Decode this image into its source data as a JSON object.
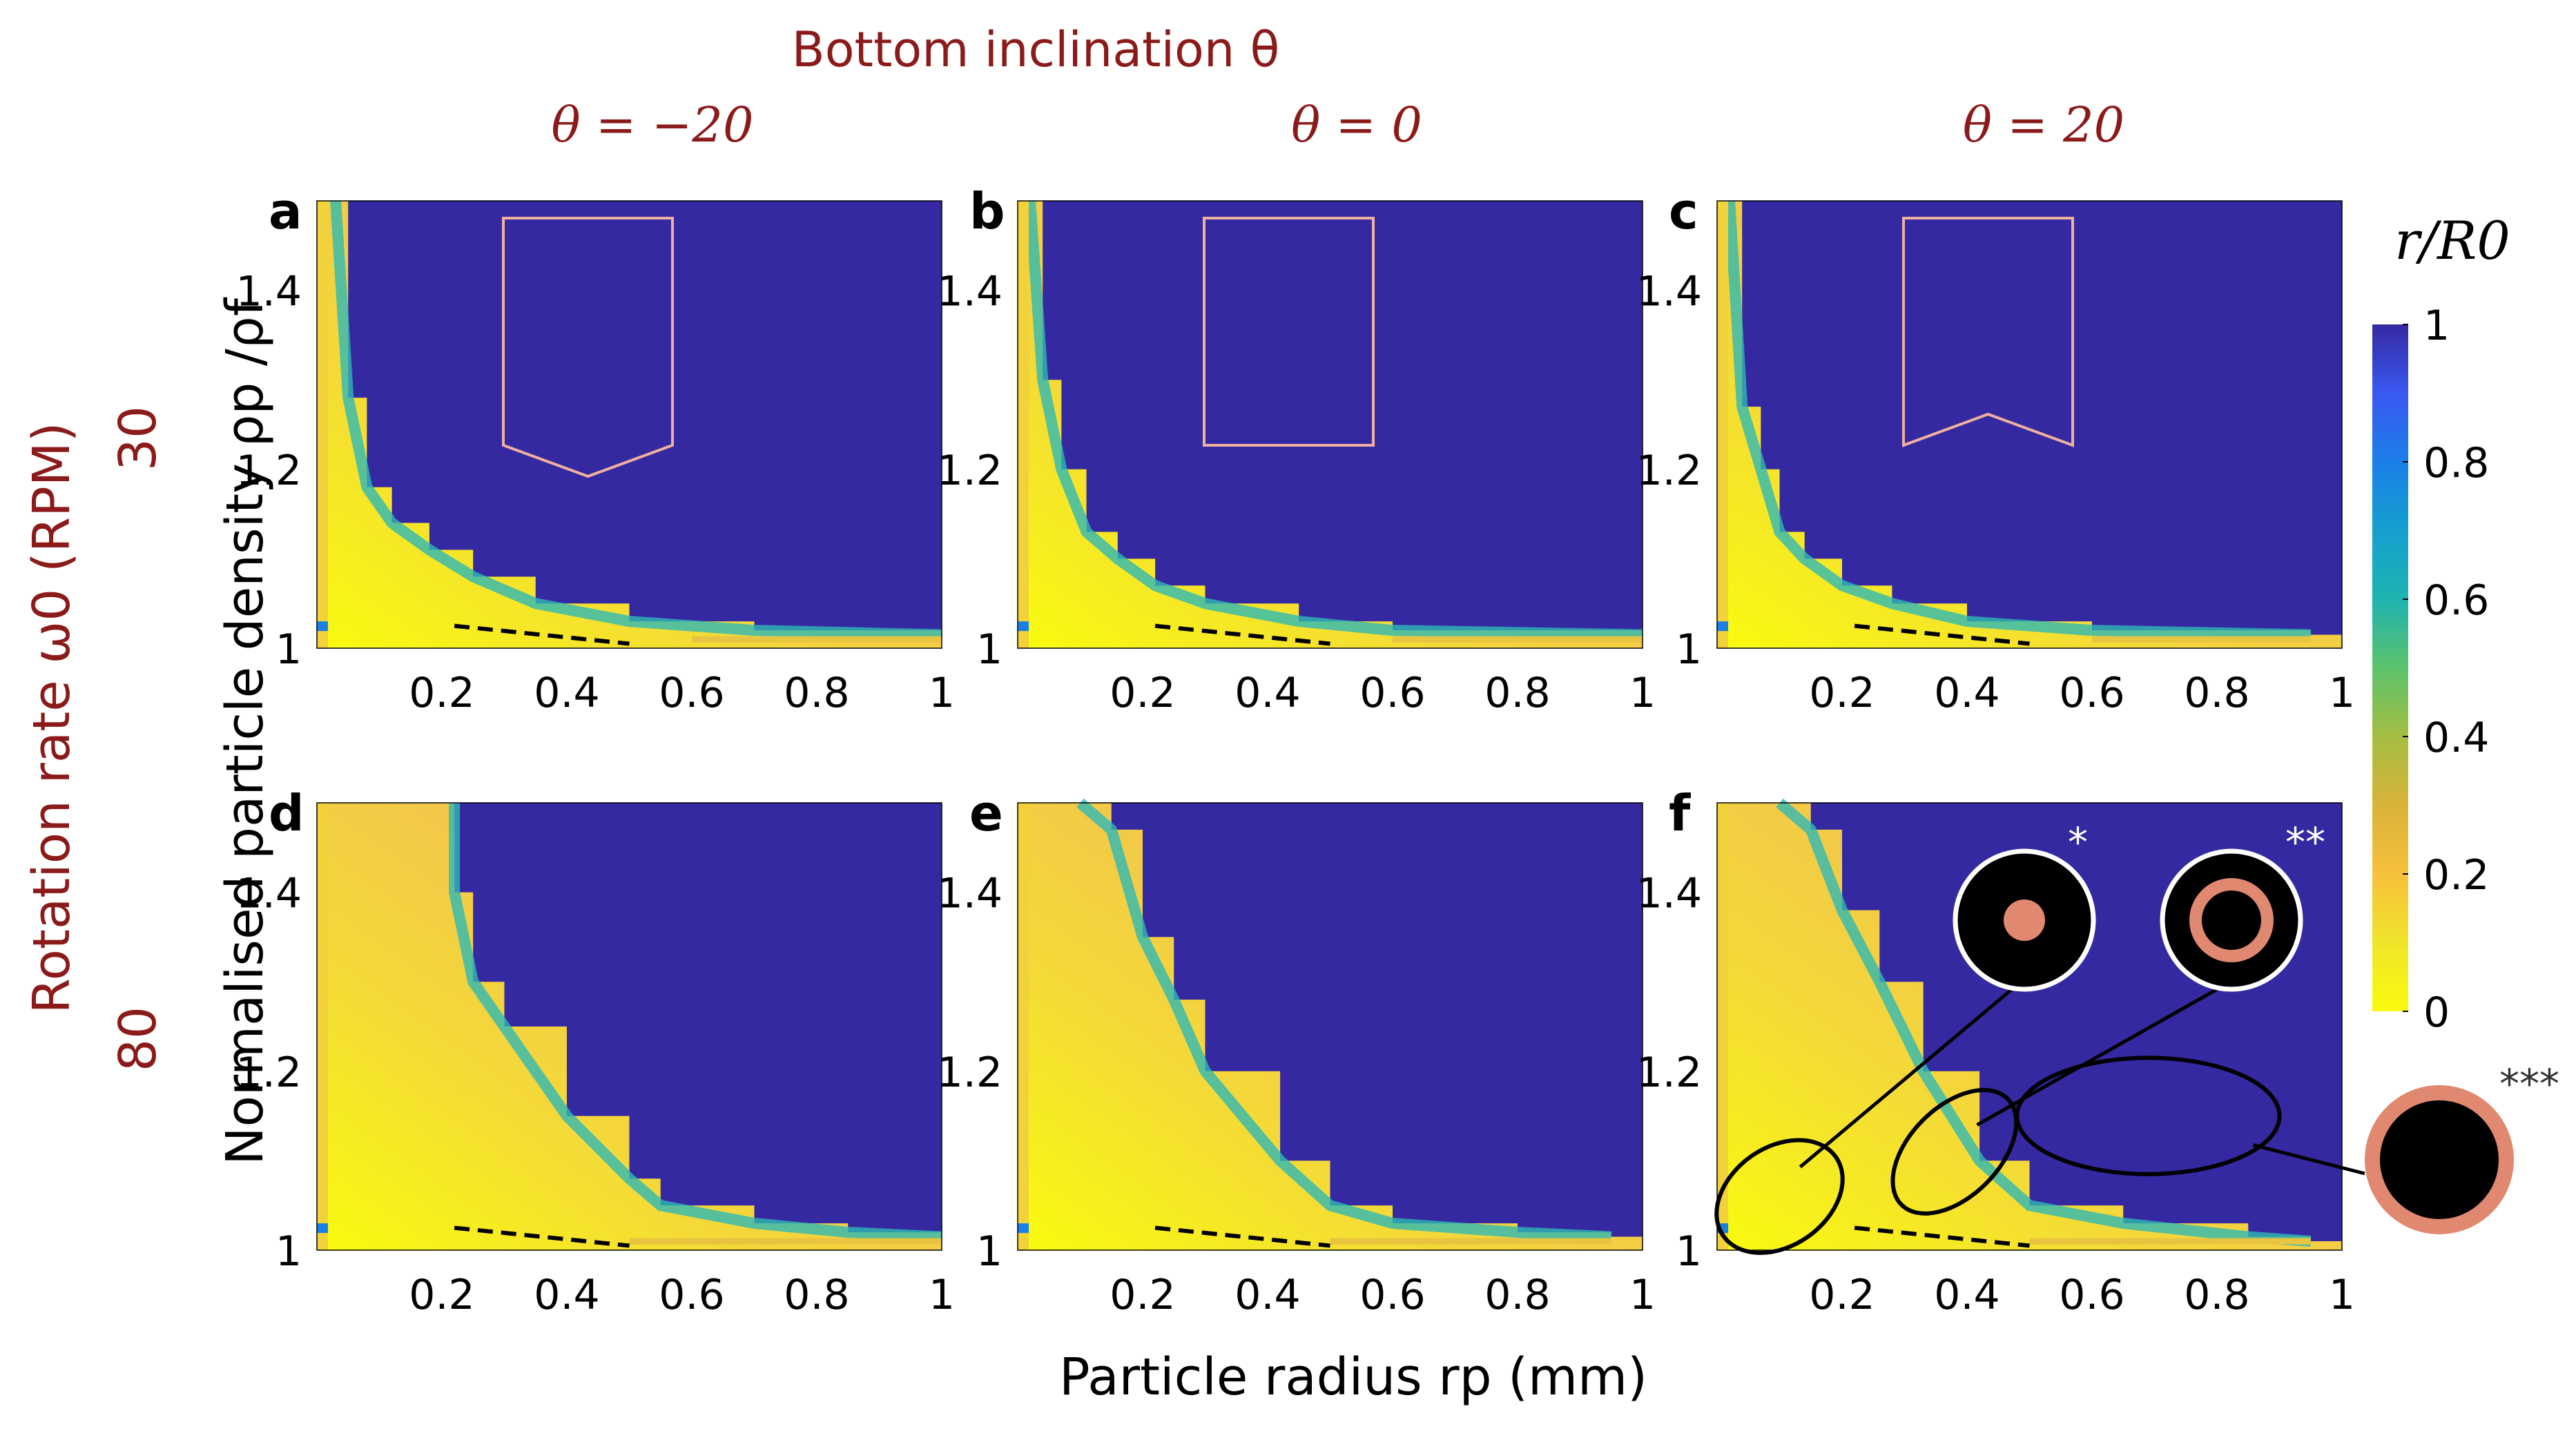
{
  "figure": {
    "suptitle": "Bottom inclination θ",
    "columns": [
      "θ = −20",
      "θ = 0",
      "θ = 20"
    ],
    "panel_letters": [
      "a",
      "b",
      "c",
      "d",
      "e",
      "f"
    ],
    "row_label": "Rotation rate ω0 (RPM)",
    "row_values": [
      "30",
      "80"
    ],
    "ylabel": "Normalised particle density ρp /ρf",
    "xlabel": "Particle radius rp (mm)",
    "colorbar_label": "r/R0",
    "markers": [
      "*",
      "**",
      "***"
    ],
    "colors": {
      "title": "#8b1a1a",
      "background": "#3529a1",
      "annotation": "#e08870",
      "outline": "#f0b0a0"
    }
  },
  "chart_data": {
    "type": "heatmap",
    "x": {
      "label": "Particle radius rp (mm)",
      "range": [
        0,
        1
      ],
      "ticks": [
        0.2,
        0.4,
        0.6,
        0.8,
        1
      ],
      "tick_labels": [
        "0.2",
        "0.4",
        "0.6",
        "0.8",
        "1"
      ]
    },
    "y": {
      "label": "Normalised particle density ρp /ρf",
      "range": [
        1,
        1.5
      ],
      "ticks": [
        1,
        1.2,
        1.4
      ],
      "tick_labels": [
        "1",
        "1.2",
        "1.4"
      ]
    },
    "colorbar": {
      "label": "r/R0",
      "range": [
        0,
        1
      ],
      "ticks": [
        0,
        0.2,
        0.4,
        0.6,
        0.8,
        1
      ],
      "tick_labels": [
        "0",
        "0.2",
        "0.4",
        "0.6",
        "0.8",
        "1"
      ],
      "colormap": "parula"
    },
    "panels": [
      {
        "id": "a",
        "theta": -20,
        "omega_rpm": 30,
        "boundary": [
          [
            0.03,
            1.5
          ],
          [
            0.05,
            1.28
          ],
          [
            0.08,
            1.18
          ],
          [
            0.12,
            1.14
          ],
          [
            0.18,
            1.11
          ],
          [
            0.25,
            1.08
          ],
          [
            0.35,
            1.05
          ],
          [
            0.5,
            1.03
          ],
          [
            0.7,
            1.02
          ],
          [
            1.0,
            1.015
          ]
        ],
        "edge_tail": [
          0.6,
          1.0
        ]
      },
      {
        "id": "b",
        "theta": 0,
        "omega_rpm": 30,
        "boundary": [
          [
            0.02,
            1.5
          ],
          [
            0.04,
            1.3
          ],
          [
            0.07,
            1.2
          ],
          [
            0.11,
            1.13
          ],
          [
            0.16,
            1.1
          ],
          [
            0.22,
            1.07
          ],
          [
            0.3,
            1.05
          ],
          [
            0.45,
            1.03
          ],
          [
            0.6,
            1.02
          ],
          [
            1.0,
            1.015
          ]
        ],
        "edge_tail": [
          0.6,
          1.0
        ]
      },
      {
        "id": "c",
        "theta": 20,
        "omega_rpm": 30,
        "boundary": [
          [
            0.02,
            1.5
          ],
          [
            0.04,
            1.27
          ],
          [
            0.07,
            1.2
          ],
          [
            0.1,
            1.13
          ],
          [
            0.14,
            1.1
          ],
          [
            0.2,
            1.07
          ],
          [
            0.28,
            1.05
          ],
          [
            0.4,
            1.03
          ],
          [
            0.6,
            1.02
          ],
          [
            0.95,
            1.015
          ]
        ],
        "edge_tail": [
          0.6,
          0.95
        ]
      },
      {
        "id": "d",
        "theta": -20,
        "omega_rpm": 80,
        "boundary": [
          [
            0.22,
            1.5
          ],
          [
            0.22,
            1.4
          ],
          [
            0.25,
            1.3
          ],
          [
            0.3,
            1.25
          ],
          [
            0.4,
            1.15
          ],
          [
            0.5,
            1.08
          ],
          [
            0.55,
            1.05
          ],
          [
            0.7,
            1.03
          ],
          [
            0.85,
            1.02
          ],
          [
            1.0,
            1.015
          ]
        ],
        "edge_tail": [
          0.5,
          1.0
        ]
      },
      {
        "id": "e",
        "theta": 0,
        "omega_rpm": 80,
        "boundary": [
          [
            0.1,
            1.5
          ],
          [
            0.15,
            1.47
          ],
          [
            0.2,
            1.35
          ],
          [
            0.25,
            1.28
          ],
          [
            0.3,
            1.2
          ],
          [
            0.42,
            1.1
          ],
          [
            0.5,
            1.05
          ],
          [
            0.6,
            1.03
          ],
          [
            0.8,
            1.02
          ],
          [
            0.95,
            1.015
          ]
        ],
        "edge_tail": [
          0.5,
          0.95
        ]
      },
      {
        "id": "f",
        "theta": 20,
        "omega_rpm": 80,
        "boundary": [
          [
            0.1,
            1.5
          ],
          [
            0.15,
            1.47
          ],
          [
            0.2,
            1.38
          ],
          [
            0.26,
            1.3
          ],
          [
            0.33,
            1.2
          ],
          [
            0.42,
            1.1
          ],
          [
            0.5,
            1.05
          ],
          [
            0.65,
            1.03
          ],
          [
            0.85,
            1.015
          ],
          [
            0.95,
            1.01
          ]
        ],
        "edge_tail": [
          0.5,
          0.95
        ]
      }
    ],
    "dashed_reference": {
      "from": [
        0.22,
        1.025
      ],
      "to": [
        0.5,
        1.005
      ]
    },
    "container_shapes": [
      {
        "panel": "a",
        "bottom": "pointed-down"
      },
      {
        "panel": "b",
        "bottom": "flat"
      },
      {
        "panel": "c",
        "bottom": "notched-up"
      }
    ],
    "annotations": [
      {
        "panel": "f",
        "label": "*",
        "description": "centre",
        "ellipse": {
          "cx": 0.1,
          "cy": 1.06,
          "rx": 0.11,
          "ry": 0.055,
          "angle": -35
        }
      },
      {
        "panel": "f",
        "label": "**",
        "description": "ring",
        "ellipse": {
          "cx": 0.38,
          "cy": 1.11,
          "rx": 0.12,
          "ry": 0.05,
          "angle": -45
        }
      },
      {
        "panel": "f",
        "label": "***",
        "description": "wall",
        "ellipse": {
          "cx": 0.69,
          "cy": 1.15,
          "rx": 0.21,
          "ry": 0.065,
          "angle": 0
        }
      }
    ]
  }
}
